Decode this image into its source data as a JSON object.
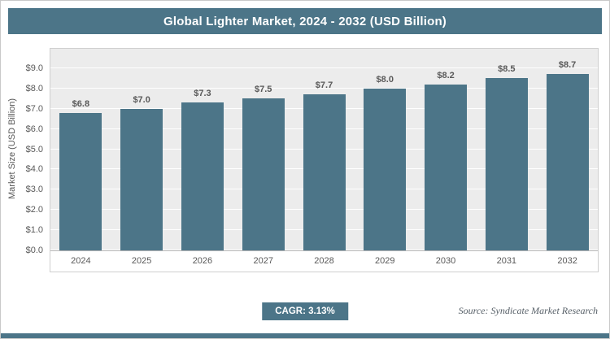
{
  "theme": {
    "accent": "#4c7588",
    "plot_bg": "#ececec",
    "grid_color": "#ffffff",
    "text_color": "#595959"
  },
  "header": {
    "title": "Global Lighter Market, 2024 - 2032 (USD Billion)"
  },
  "footer": {
    "cagr_label": "CAGR: 3.13%",
    "source": "Source: Syndicate Market Research"
  },
  "chart_data": {
    "type": "bar",
    "title": "Global Lighter Market, 2024 - 2032 (USD Billion)",
    "categories": [
      "2024",
      "2025",
      "2026",
      "2027",
      "2028",
      "2029",
      "2030",
      "2031",
      "2032"
    ],
    "values": [
      6.8,
      7.0,
      7.3,
      7.5,
      7.7,
      8.0,
      8.2,
      8.5,
      8.7
    ],
    "bar_labels": [
      "$6.8",
      "$7.0",
      "$7.3",
      "$7.5",
      "$7.7",
      "$8.0",
      "$8.2",
      "$8.5",
      "$8.7"
    ],
    "xlabel": "",
    "ylabel": "Market Size (USD Billion)",
    "ylim": [
      0,
      9
    ],
    "yticks": [
      0,
      1,
      2,
      3,
      4,
      5,
      6,
      7,
      8,
      9
    ],
    "ytick_labels": [
      "$0.0",
      "$1.0",
      "$2.0",
      "$3.0",
      "$4.0",
      "$5.0",
      "$6.0",
      "$7.0",
      "$8.0",
      "$9.0"
    ],
    "grid": true,
    "legend": false,
    "bar_color": "#4c7588"
  }
}
